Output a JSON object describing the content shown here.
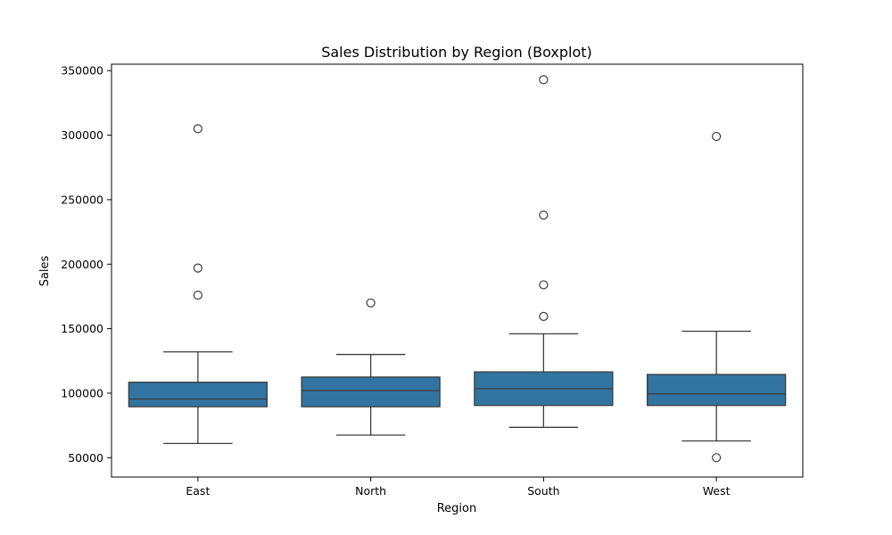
{
  "chart_data": {
    "type": "boxplot",
    "title": "Sales Distribution by Region (Boxplot)",
    "xlabel": "Region",
    "ylabel": "Sales",
    "ylim": [
      35000,
      355000
    ],
    "yticks": [
      50000,
      100000,
      150000,
      200000,
      250000,
      300000,
      350000
    ],
    "grid": false,
    "box_color": "#3274a1",
    "line_color": "#3d3d3d",
    "categories": [
      "East",
      "North",
      "South",
      "West"
    ],
    "boxes": [
      {
        "category": "East",
        "whisker_low": 61000,
        "q1": 89500,
        "median": 95500,
        "q3": 108500,
        "whisker_high": 132000,
        "outliers": [
          305000,
          197000,
          176000
        ]
      },
      {
        "category": "North",
        "whisker_low": 67500,
        "q1": 89500,
        "median": 102000,
        "q3": 112500,
        "whisker_high": 130000,
        "outliers": [
          170000
        ]
      },
      {
        "category": "South",
        "whisker_low": 73500,
        "q1": 90500,
        "median": 103500,
        "q3": 116500,
        "whisker_high": 146000,
        "outliers": [
          343000,
          238000,
          184000,
          159500
        ]
      },
      {
        "category": "West",
        "whisker_low": 63000,
        "q1": 90500,
        "median": 99500,
        "q3": 114500,
        "whisker_high": 148000,
        "outliers": [
          299000,
          50000
        ]
      }
    ]
  }
}
